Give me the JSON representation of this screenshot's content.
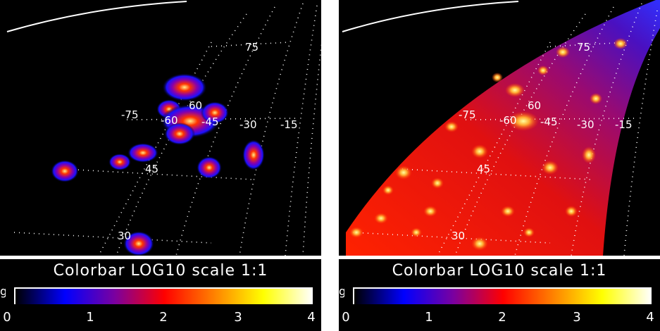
{
  "left_panel": {
    "grid_labels": [
      "75",
      "60",
      "-75",
      "-60",
      "-45",
      "-30",
      "-15",
      "45",
      "30"
    ]
  },
  "right_panel": {
    "grid_labels": [
      "75",
      "60",
      "-75",
      "-60",
      "-45",
      "-30",
      "-15",
      "45",
      "30"
    ]
  },
  "colorbar": {
    "title": "Colorbar LOG10 scale 1:1",
    "side_glyph": "g",
    "ticks": [
      "0",
      "1",
      "2",
      "3",
      "4"
    ],
    "colors": [
      "#000000",
      "#0000ff",
      "#7a00a0",
      "#ff0000",
      "#ff8000",
      "#ffff00",
      "#ffffff"
    ]
  }
}
